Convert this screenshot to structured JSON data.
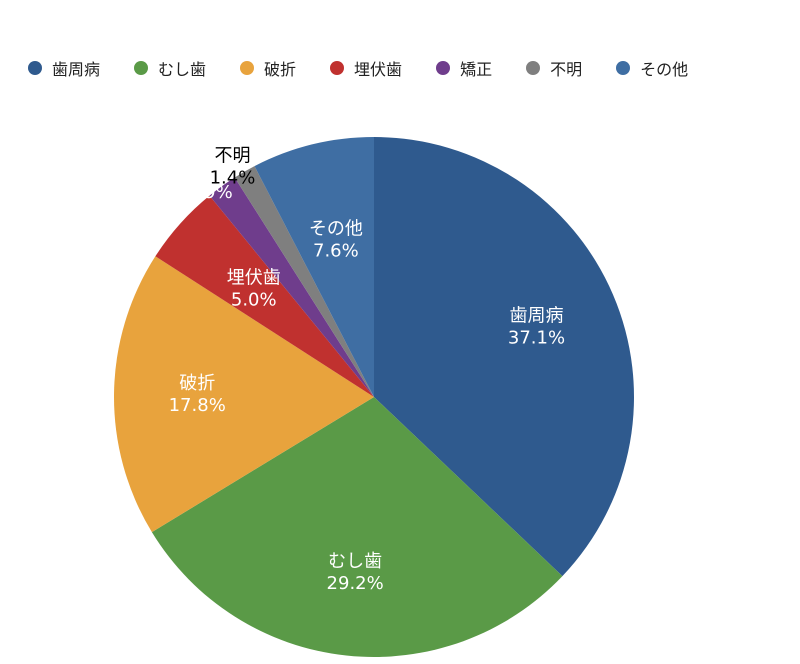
{
  "chart_data": {
    "type": "pie",
    "title": "",
    "legend_position": "top",
    "slices": [
      {
        "name": "歯周病",
        "value": 37.1,
        "label": "37.1%",
        "color": "#2f5a8e"
      },
      {
        "name": "むし歯",
        "value": 29.2,
        "label": "29.2%",
        "color": "#5a9a47"
      },
      {
        "name": "破折",
        "value": 17.8,
        "label": "17.8%",
        "color": "#e8a33d"
      },
      {
        "name": "埋伏歯",
        "value": 5.0,
        "label": "5.0%",
        "color": "#c0312f"
      },
      {
        "name": "矯正",
        "value": 1.9,
        "label": "1.9%",
        "color": "#6f3d8c"
      },
      {
        "name": "不明",
        "value": 1.4,
        "label": "1.4%",
        "color": "#7f7f7f"
      },
      {
        "name": "その他",
        "value": 7.6,
        "label": "7.6%",
        "color": "#3f6ea3"
      }
    ]
  }
}
